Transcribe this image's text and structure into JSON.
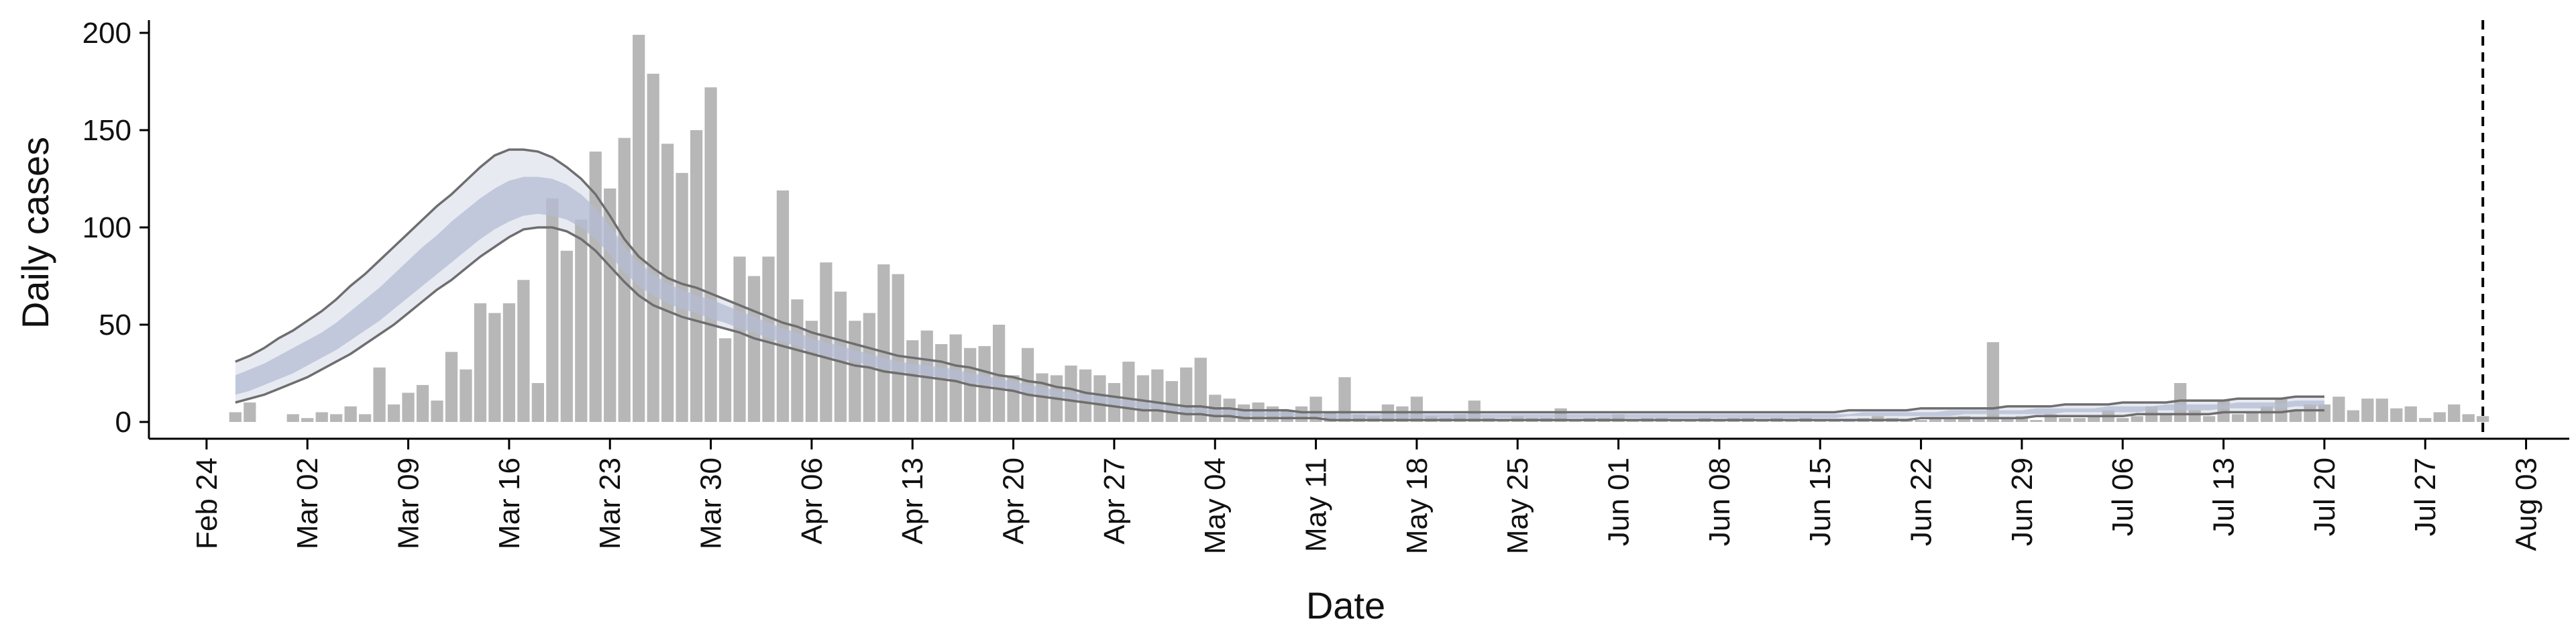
{
  "chart_data": {
    "type": "bar",
    "title": "",
    "xlabel": "Date",
    "ylabel": "Daily cases",
    "ylim": [
      0,
      210
    ],
    "yticks": [
      0,
      50,
      100,
      150,
      200
    ],
    "xlim": [
      "2020-02-20",
      "2020-08-06"
    ],
    "x_tick_dates": [
      "2020-02-24",
      "2020-03-02",
      "2020-03-09",
      "2020-03-16",
      "2020-03-23",
      "2020-03-30",
      "2020-04-06",
      "2020-04-13",
      "2020-04-20",
      "2020-04-27",
      "2020-05-04",
      "2020-05-11",
      "2020-05-18",
      "2020-05-25",
      "2020-06-01",
      "2020-06-08",
      "2020-06-15",
      "2020-06-22",
      "2020-06-29",
      "2020-07-06",
      "2020-07-13",
      "2020-07-20",
      "2020-07-27",
      "2020-08-03"
    ],
    "x_tick_labels": [
      "Feb 24",
      "Mar 02",
      "Mar 09",
      "Mar 16",
      "Mar 23",
      "Mar 30",
      "Apr 06",
      "Apr 13",
      "Apr 20",
      "Apr 27",
      "May 04",
      "May 11",
      "May 18",
      "May 25",
      "Jun 01",
      "Jun 08",
      "Jun 15",
      "Jun 22",
      "Jun 29",
      "Jul 06",
      "Jul 13",
      "Jul 20",
      "Jul 27",
      "Aug 03"
    ],
    "grid": false,
    "legend": "none",
    "vline_date": "2020-07-31",
    "colors": {
      "bars": "#b7b7b7",
      "outer_band": "#e3e6ef",
      "inner_band": "#b4bcd3",
      "band_edges": "#6e6e70",
      "axis": "#000000",
      "vline": "#000000"
    },
    "bars": {
      "start_date": "2020-02-26",
      "values": [
        5,
        10,
        0,
        0,
        4,
        2,
        5,
        4,
        8,
        4,
        28,
        9,
        15,
        19,
        11,
        36,
        27,
        61,
        56,
        61,
        73,
        20,
        115,
        88,
        104,
        139,
        120,
        146,
        199,
        179,
        143,
        128,
        150,
        172,
        43,
        85,
        75,
        85,
        119,
        63,
        52,
        82,
        67,
        52,
        56,
        81,
        76,
        42,
        47,
        40,
        45,
        38,
        39,
        50,
        24,
        38,
        25,
        24,
        29,
        27,
        24,
        20,
        31,
        24,
        27,
        21,
        28,
        33,
        14,
        12,
        9,
        10,
        8,
        6,
        8,
        13,
        5,
        23,
        4,
        3,
        9,
        8,
        13,
        3,
        2,
        4,
        11,
        2,
        1,
        3,
        2,
        2,
        7,
        1,
        2,
        2,
        4,
        1,
        2,
        2,
        1,
        1,
        2,
        1,
        2,
        2,
        1,
        2,
        1,
        2,
        1,
        1,
        1,
        2,
        3,
        2,
        1,
        1,
        2,
        2,
        3,
        2,
        41,
        2,
        3,
        1,
        4,
        2,
        2,
        3,
        6,
        2,
        3,
        8,
        4,
        20,
        6,
        3,
        11,
        4,
        5,
        8,
        12,
        6,
        9,
        9,
        13,
        6,
        12,
        12,
        7,
        8,
        2,
        5,
        9,
        4,
        3
      ]
    },
    "ci_bands": {
      "start_date": "2020-02-26",
      "outer_upper": [
        31,
        34,
        38,
        43,
        47,
        52,
        57,
        63,
        70,
        76,
        83,
        90,
        97,
        104,
        111,
        117,
        124,
        131,
        137,
        140,
        140,
        139,
        136,
        131,
        125,
        117,
        106,
        94,
        85,
        79,
        74,
        71,
        69,
        66,
        63,
        60,
        57,
        54,
        51,
        49,
        46,
        44,
        42,
        40,
        38,
        36,
        34,
        33,
        32,
        31,
        29,
        28,
        26,
        24,
        23,
        21,
        20,
        18,
        17,
        15,
        14,
        13,
        12,
        11,
        10,
        9,
        8,
        8,
        7,
        7,
        6,
        6,
        6,
        6,
        5,
        5,
        5,
        5,
        5,
        5,
        5,
        5,
        5,
        5,
        5,
        5,
        5,
        5,
        5,
        5,
        5,
        5,
        5,
        5,
        5,
        5,
        5,
        5,
        5,
        5,
        5,
        5,
        5,
        5,
        5,
        5,
        5,
        5,
        5,
        5,
        5,
        5,
        6,
        6,
        6,
        6,
        6,
        7,
        7,
        7,
        7,
        7,
        7,
        8,
        8,
        8,
        8,
        9,
        9,
        9,
        9,
        10,
        10,
        10,
        10,
        11,
        11,
        11,
        11,
        12,
        12,
        12,
        12,
        13,
        13,
        13
      ],
      "inner_upper": [
        24,
        27,
        30,
        34,
        38,
        42,
        46,
        51,
        57,
        63,
        69,
        76,
        83,
        90,
        96,
        103,
        109,
        115,
        120,
        124,
        126,
        126,
        125,
        122,
        117,
        110,
        101,
        90,
        82,
        76,
        71,
        68,
        65,
        63,
        60,
        57,
        54,
        51,
        48,
        46,
        43,
        41,
        39,
        37,
        35,
        33,
        31,
        30,
        29,
        28,
        27,
        25,
        24,
        22,
        21,
        19,
        18,
        16,
        15,
        14,
        13,
        12,
        11,
        10,
        9,
        8,
        7,
        7,
        6,
        6,
        5,
        5,
        5,
        5,
        4,
        4,
        4,
        4,
        4,
        4,
        4,
        4,
        4,
        4,
        4,
        4,
        4,
        4,
        4,
        4,
        4,
        4,
        4,
        4,
        4,
        4,
        4,
        4,
        4,
        4,
        4,
        4,
        4,
        4,
        4,
        4,
        4,
        4,
        4,
        4,
        4,
        4,
        4,
        5,
        5,
        5,
        5,
        5,
        5,
        6,
        6,
        6,
        6,
        6,
        6,
        7,
        7,
        7,
        7,
        7,
        8,
        8,
        8,
        8,
        9,
        9,
        9,
        9,
        9,
        10,
        10,
        10,
        10,
        11,
        11,
        11
      ],
      "inner_lower": [
        14,
        16,
        19,
        22,
        25,
        29,
        33,
        37,
        42,
        47,
        52,
        58,
        64,
        70,
        76,
        82,
        88,
        94,
        99,
        103,
        106,
        107,
        106,
        104,
        100,
        94,
        86,
        77,
        70,
        65,
        61,
        58,
        56,
        53,
        51,
        48,
        46,
        43,
        41,
        39,
        36,
        34,
        32,
        31,
        29,
        27,
        26,
        25,
        24,
        23,
        22,
        20,
        19,
        18,
        17,
        15,
        14,
        13,
        12,
        11,
        10,
        9,
        8,
        7,
        7,
        6,
        5,
        5,
        4,
        4,
        3,
        3,
        3,
        3,
        3,
        3,
        2,
        2,
        2,
        2,
        2,
        2,
        2,
        2,
        2,
        2,
        2,
        2,
        2,
        2,
        2,
        2,
        2,
        2,
        2,
        2,
        2,
        2,
        2,
        2,
        2,
        2,
        2,
        2,
        2,
        2,
        2,
        2,
        2,
        2,
        2,
        2,
        3,
        3,
        3,
        3,
        3,
        3,
        3,
        3,
        4,
        4,
        4,
        4,
        4,
        4,
        4,
        5,
        5,
        5,
        5,
        5,
        5,
        6,
        6,
        6,
        6,
        6,
        7,
        7,
        7,
        7,
        7,
        8,
        8,
        8
      ],
      "outer_lower": [
        10,
        12,
        14,
        17,
        20,
        23,
        27,
        31,
        35,
        40,
        45,
        50,
        56,
        62,
        68,
        73,
        79,
        85,
        90,
        95,
        99,
        100,
        100,
        98,
        94,
        88,
        80,
        72,
        65,
        60,
        57,
        54,
        52,
        50,
        48,
        46,
        43,
        41,
        39,
        37,
        35,
        33,
        31,
        29,
        28,
        26,
        25,
        24,
        23,
        22,
        21,
        19,
        18,
        17,
        16,
        14,
        13,
        12,
        11,
        10,
        9,
        8,
        7,
        6,
        6,
        5,
        4,
        4,
        3,
        3,
        2,
        2,
        2,
        2,
        2,
        2,
        1,
        1,
        1,
        1,
        1,
        1,
        1,
        1,
        1,
        1,
        1,
        1,
        1,
        1,
        1,
        1,
        1,
        1,
        1,
        1,
        1,
        1,
        1,
        1,
        1,
        1,
        1,
        1,
        1,
        1,
        1,
        1,
        1,
        1,
        1,
        1,
        1,
        1,
        1,
        1,
        1,
        2,
        2,
        2,
        2,
        2,
        2,
        2,
        2,
        3,
        3,
        3,
        3,
        3,
        3,
        3,
        4,
        4,
        4,
        4,
        4,
        4,
        5,
        5,
        5,
        5,
        5,
        6,
        6,
        6
      ]
    }
  }
}
